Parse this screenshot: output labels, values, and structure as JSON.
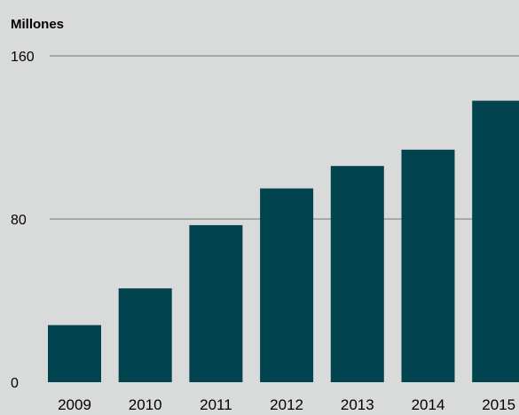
{
  "chart_data": {
    "type": "bar",
    "unit_label": "Millones",
    "categories": [
      "2009",
      "2010",
      "2011",
      "2012",
      "2013",
      "2014",
      "2015"
    ],
    "values": [
      28,
      46,
      77,
      95,
      106,
      114,
      138
    ],
    "ylim": [
      0,
      160
    ],
    "yticks": [
      "0",
      "80",
      "160"
    ],
    "grid": true,
    "bar_color": "#024350",
    "grid_color": "#8a8c8b",
    "background": "#d9dbda",
    "legend": "none"
  }
}
